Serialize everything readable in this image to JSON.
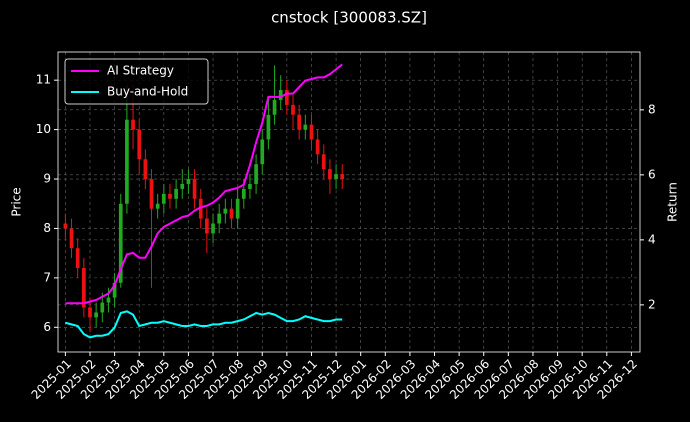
{
  "chart_data": {
    "type": "candlestick",
    "title": "cnstock [300083.SZ]",
    "ylabel": "Price",
    "y2label": "Return",
    "x": [
      0,
      0.25,
      0.5,
      0.75,
      1,
      1.25,
      1.5,
      1.75,
      2,
      2.25,
      2.5,
      2.75,
      3,
      3.25,
      3.5,
      3.75,
      4,
      4.25,
      4.5,
      4.75,
      5,
      5.25,
      5.5,
      5.75,
      6,
      6.25,
      6.5,
      6.75,
      7,
      7.25,
      7.5,
      7.75,
      8,
      8.25,
      8.5,
      8.75,
      9,
      9.25,
      9.5,
      9.75,
      10,
      10.25,
      10.5,
      10.75,
      11,
      11.25
    ],
    "open": [
      8.1,
      8.0,
      7.6,
      7.2,
      6.4,
      6.2,
      6.3,
      6.5,
      6.6,
      6.9,
      8.5,
      10.2,
      10.0,
      9.4,
      9.0,
      8.4,
      8.5,
      8.7,
      8.6,
      8.8,
      8.9,
      9.0,
      8.6,
      8.2,
      7.9,
      8.1,
      8.3,
      8.4,
      8.2,
      8.6,
      8.8,
      8.9,
      9.3,
      9.8,
      10.3,
      10.6,
      10.8,
      10.5,
      10.3,
      10.0,
      10.1,
      9.8,
      9.5,
      9.2,
      9.0,
      9.1
    ],
    "high": [
      8.3,
      8.2,
      7.8,
      7.4,
      6.6,
      6.5,
      6.7,
      6.8,
      7.1,
      8.7,
      10.9,
      10.9,
      10.2,
      9.6,
      9.2,
      8.7,
      8.9,
      8.9,
      9.0,
      9.2,
      9.2,
      9.2,
      8.8,
      8.4,
      8.3,
      8.5,
      8.6,
      8.6,
      8.8,
      9.0,
      9.1,
      9.5,
      10.0,
      10.6,
      11.3,
      11.1,
      11.0,
      10.7,
      10.5,
      10.3,
      10.3,
      10.0,
      9.7,
      9.4,
      9.3,
      9.3
    ],
    "low": [
      7.8,
      7.4,
      7.0,
      6.2,
      5.9,
      6.0,
      6.1,
      6.3,
      6.4,
      6.8,
      8.3,
      9.6,
      9.1,
      8.8,
      6.8,
      8.2,
      8.3,
      8.4,
      8.4,
      8.6,
      8.7,
      8.4,
      8.0,
      7.5,
      7.7,
      7.9,
      8.1,
      8.0,
      8.0,
      8.4,
      8.6,
      8.7,
      9.1,
      9.6,
      10.1,
      10.4,
      10.3,
      10.0,
      9.8,
      9.8,
      9.6,
      9.3,
      9.0,
      8.7,
      8.8,
      8.8
    ],
    "close": [
      8.0,
      7.6,
      7.2,
      6.4,
      6.2,
      6.3,
      6.5,
      6.6,
      6.9,
      8.5,
      10.2,
      10.0,
      9.4,
      9.0,
      8.4,
      8.5,
      8.7,
      8.6,
      8.8,
      8.9,
      9.0,
      8.6,
      8.2,
      7.9,
      8.1,
      8.3,
      8.4,
      8.2,
      8.6,
      8.8,
      8.9,
      9.3,
      9.8,
      10.3,
      10.6,
      10.8,
      10.5,
      10.3,
      10.0,
      10.1,
      9.8,
      9.5,
      9.2,
      9.0,
      9.1,
      9.0
    ],
    "up_color": "#22aa22",
    "down_color": "#ee1111",
    "series": [
      {
        "name": "AI Strategy",
        "color": "#ff00ff",
        "axis": "y2",
        "values": [
          2.05,
          2.05,
          2.05,
          2.05,
          2.1,
          2.15,
          2.25,
          2.35,
          2.6,
          3.1,
          3.55,
          3.6,
          3.45,
          3.45,
          3.8,
          4.2,
          4.4,
          4.5,
          4.6,
          4.7,
          4.75,
          4.9,
          5.0,
          5.05,
          5.15,
          5.3,
          5.5,
          5.55,
          5.6,
          5.7,
          6.3,
          7.0,
          7.6,
          8.4,
          8.4,
          8.4,
          8.5,
          8.5,
          8.7,
          8.9,
          8.95,
          9.0,
          9.0,
          9.1,
          9.25,
          9.4
        ]
      },
      {
        "name": "Buy-and-Hold",
        "color": "#00ffff",
        "axis": "y2",
        "values": [
          1.45,
          1.4,
          1.35,
          1.1,
          1.0,
          1.05,
          1.05,
          1.1,
          1.3,
          1.75,
          1.8,
          1.7,
          1.35,
          1.4,
          1.45,
          1.45,
          1.5,
          1.45,
          1.4,
          1.35,
          1.35,
          1.4,
          1.35,
          1.35,
          1.4,
          1.4,
          1.45,
          1.45,
          1.5,
          1.55,
          1.65,
          1.75,
          1.7,
          1.75,
          1.7,
          1.6,
          1.5,
          1.5,
          1.55,
          1.65,
          1.6,
          1.55,
          1.5,
          1.5,
          1.55,
          1.55
        ]
      }
    ],
    "xlim": [
      -0.3,
      23.35
    ],
    "xticks": [
      {
        "value": 0,
        "label": "2025-01"
      },
      {
        "value": 1,
        "label": "2025-02"
      },
      {
        "value": 2,
        "label": "2025-03"
      },
      {
        "value": 3,
        "label": "2025-04"
      },
      {
        "value": 4,
        "label": "2025-05"
      },
      {
        "value": 5,
        "label": "2025-06"
      },
      {
        "value": 6,
        "label": "2025-07"
      },
      {
        "value": 7,
        "label": "2025-08"
      },
      {
        "value": 8,
        "label": "2025-09"
      },
      {
        "value": 9,
        "label": "2025-10"
      },
      {
        "value": 10,
        "label": "2025-11"
      },
      {
        "value": 11,
        "label": "2025-12"
      },
      {
        "value": 12,
        "label": "2026-01"
      },
      {
        "value": 13,
        "label": "2026-02"
      },
      {
        "value": 14,
        "label": "2026-03"
      },
      {
        "value": 15,
        "label": "2026-04"
      },
      {
        "value": 16,
        "label": "2026-05"
      },
      {
        "value": 17,
        "label": "2026-06"
      },
      {
        "value": 18,
        "label": "2026-07"
      },
      {
        "value": 19,
        "label": "2026-08"
      },
      {
        "value": 20,
        "label": "2026-09"
      },
      {
        "value": 21,
        "label": "2026-10"
      },
      {
        "value": 22,
        "label": "2026-11"
      },
      {
        "value": 23,
        "label": "2026-12"
      }
    ],
    "ylim": [
      5.5,
      11.57
    ],
    "yticks": [
      6,
      7,
      8,
      9,
      10,
      11
    ],
    "y2lim": [
      0.55,
      9.78
    ],
    "y2ticks": [
      2,
      4,
      6,
      8
    ],
    "grid": true,
    "legend": "upper left"
  }
}
